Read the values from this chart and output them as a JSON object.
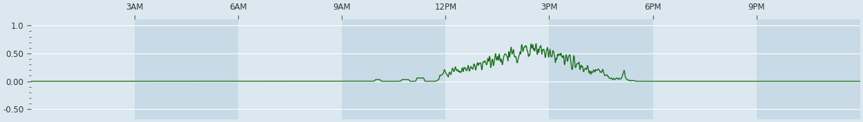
{
  "line_color": "#1a6e1a",
  "line_width": 1.0,
  "plot_bg_color": "#dce8f0",
  "alt_bg_color": "#c8dae6",
  "fig_bg_color": "#dce8f0",
  "ylim": [
    -0.68,
    1.12
  ],
  "yticks": [
    -0.5,
    0.0,
    0.5,
    1.0
  ],
  "ytick_labels": [
    "-0.50",
    "0.00",
    "0.50",
    "1.0"
  ],
  "xtick_labels": [
    "3AM",
    "6AM",
    "9AM",
    "12PM",
    "3PM",
    "6PM",
    "9PM"
  ],
  "xtick_positions": [
    3,
    6,
    9,
    12,
    15,
    18,
    21
  ],
  "xlim": [
    0,
    24
  ],
  "grid_color": "#b0c8d8",
  "tick_color": "#555555",
  "label_color": "#333333"
}
